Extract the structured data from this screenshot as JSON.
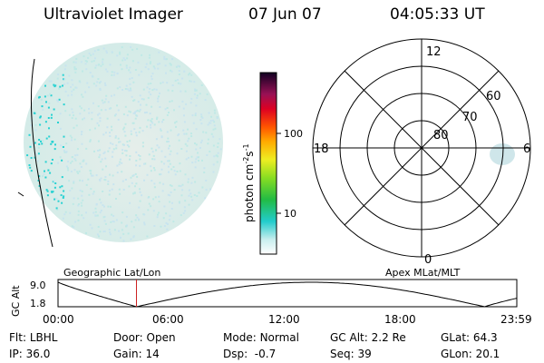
{
  "header": {
    "title": "Ultraviolet Imager",
    "date": "07 Jun 07",
    "time": "04:05:33 UT"
  },
  "colorbar": {
    "unit_label": "photon cm",
    "unit_sup1": "-2",
    "unit_mid": "s",
    "unit_sup2": "-1",
    "ticks": [
      "100",
      "10"
    ]
  },
  "polar_plot": {
    "mlt_labels": {
      "top": "12",
      "left": "18",
      "right": "6",
      "bottom": "0"
    },
    "mlat_labels": [
      "80",
      "70",
      "60"
    ]
  },
  "timeline": {
    "left_title": "Geographic Lat/Lon",
    "right_title": "Apex MLat/MLT",
    "y_label": "GC Alt",
    "y_max": "9.0",
    "y_min": "1.8",
    "x_ticks": [
      "00:00",
      "06:00",
      "12:00",
      "18:00",
      "23:59"
    ],
    "current_time_fraction": 0.171
  },
  "status": {
    "row1": {
      "flt_label": "Flt:",
      "flt_value": "LBHL",
      "door_label": "Door:",
      "door_value": "Open",
      "mode_label": "Mode:",
      "mode_value": "Normal",
      "gcalt_label": "GC Alt:",
      "gcalt_value": "2.2 Re",
      "glat_label": "GLat:",
      "glat_value": "64.3"
    },
    "row2": {
      "ip_label": "IP:",
      "ip_value": "36.0",
      "gain_label": "Gain:",
      "gain_value": "14",
      "dsp_label": "Dsp:",
      "dsp_value": "-0.7",
      "seq_label": "Seq:",
      "seq_value": "39",
      "glon_label": "GLon:",
      "glon_value": "20.1"
    }
  },
  "colors": {
    "accent_line": "#cc2222",
    "aurora": "#28d2d2",
    "background_glow": "#d8ece8"
  }
}
